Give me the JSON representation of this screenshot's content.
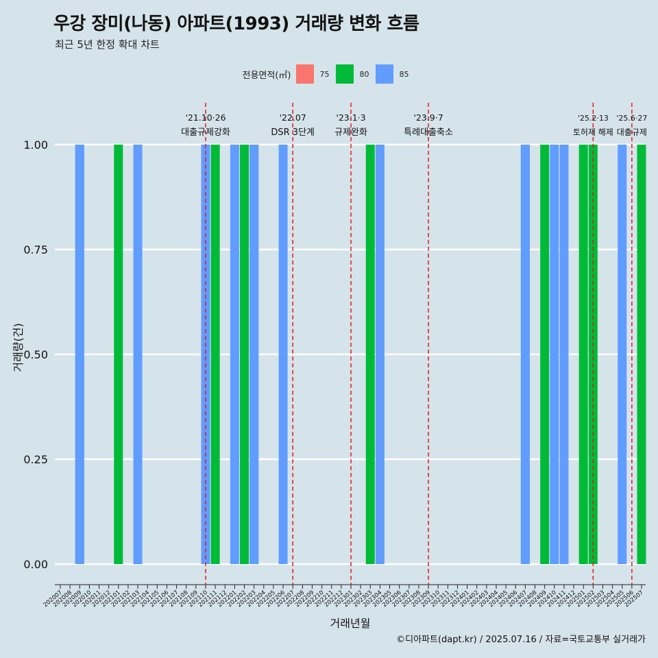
{
  "title": "우강 장미(나동) 아파트(1993) 거래량 변화 흐름",
  "subtitle": "최근 5년 한정 확대 차트",
  "caption": "©디아파트(dapt.kr) / 2025.07.16 / 자료=국토교통부 실거래가",
  "legend": {
    "title": "전용면적(㎡)",
    "items": [
      {
        "label": "75",
        "color": "#F8766D"
      },
      {
        "label": "80",
        "color": "#00BA38"
      },
      {
        "label": "85",
        "color": "#619CFF"
      }
    ]
  },
  "chart_data": {
    "type": "bar",
    "xlabel": "거래년월",
    "ylabel": "거래량(건)",
    "ylim": [
      0,
      1
    ],
    "yticks": [
      "0.00",
      "0.25",
      "0.50",
      "0.75",
      "1.00"
    ],
    "grid": true,
    "legend_position": "top",
    "categories": [
      "202007",
      "202008",
      "202009",
      "202010",
      "202011",
      "202012",
      "202101",
      "202102",
      "202103",
      "202104",
      "202105",
      "202106",
      "202107",
      "202108",
      "202109",
      "202110",
      "202111",
      "202112",
      "202201",
      "202202",
      "202203",
      "202204",
      "202205",
      "202206",
      "202207",
      "202208",
      "202209",
      "202210",
      "202211",
      "202212",
      "202301",
      "202302",
      "202303",
      "202304",
      "202305",
      "202306",
      "202307",
      "202308",
      "202309",
      "202310",
      "202311",
      "202312",
      "202401",
      "202402",
      "202403",
      "202404",
      "202405",
      "202406",
      "202407",
      "202408",
      "202409",
      "202410",
      "202411",
      "202412",
      "202501",
      "202502",
      "202503",
      "202504",
      "202505",
      "202506",
      "202507"
    ],
    "series": [
      {
        "name": "75",
        "color": "#F8766D",
        "values": [
          0,
          0,
          0,
          0,
          0,
          0,
          0,
          0,
          0,
          0,
          0,
          0,
          0,
          0,
          0,
          0,
          0,
          0,
          0,
          0,
          0,
          0,
          0,
          0,
          0,
          0,
          0,
          0,
          0,
          0,
          0,
          0,
          0,
          0,
          0,
          0,
          0,
          0,
          0,
          0,
          0,
          0,
          0,
          0,
          0,
          0,
          0,
          0,
          0,
          0,
          0,
          0,
          0,
          0,
          0,
          0,
          0,
          0,
          0,
          0,
          0
        ]
      },
      {
        "name": "80",
        "color": "#00BA38",
        "values": [
          0,
          0,
          1,
          0,
          0,
          0,
          1,
          0,
          0,
          0,
          0,
          0,
          0,
          0,
          0,
          0,
          1,
          0,
          0,
          1,
          1,
          0,
          0,
          0,
          0,
          0,
          0,
          0,
          0,
          0,
          0,
          0,
          1,
          0,
          0,
          0,
          0,
          0,
          0,
          0,
          0,
          0,
          0,
          0,
          0,
          0,
          0,
          0,
          1,
          0,
          1,
          0,
          0,
          0,
          1,
          1,
          0,
          0,
          0,
          0,
          1
        ]
      },
      {
        "name": "85",
        "color": "#619CFF",
        "values": [
          0,
          0,
          1,
          0,
          0,
          0,
          0,
          0,
          1,
          0,
          0,
          0,
          0,
          0,
          0,
          1,
          0,
          0,
          1,
          0,
          1,
          0,
          0,
          1,
          0,
          0,
          0,
          0,
          0,
          0,
          0,
          0,
          0,
          1,
          0,
          0,
          0,
          0,
          0,
          0,
          0,
          0,
          0,
          0,
          0,
          0,
          0,
          0,
          1,
          0,
          0,
          1,
          1,
          0,
          0,
          0,
          0,
          0,
          1,
          0,
          0
        ]
      }
    ],
    "annotations": [
      {
        "date": "'21.10·26",
        "label": "대출규제강화",
        "at": "202110"
      },
      {
        "date": "'22.07",
        "label": "DSR 3단계",
        "at": "202207"
      },
      {
        "date": "'23.1·3",
        "label": "규제완화",
        "at": "202301"
      },
      {
        "date": "'23.9·7",
        "label": "특례대출축소",
        "at": "202309"
      },
      {
        "date": "'25.2·13",
        "label": "토허제 해제",
        "at": "202502"
      },
      {
        "date": "'25.6·27",
        "label": "대출규제",
        "at": "202506"
      }
    ]
  }
}
